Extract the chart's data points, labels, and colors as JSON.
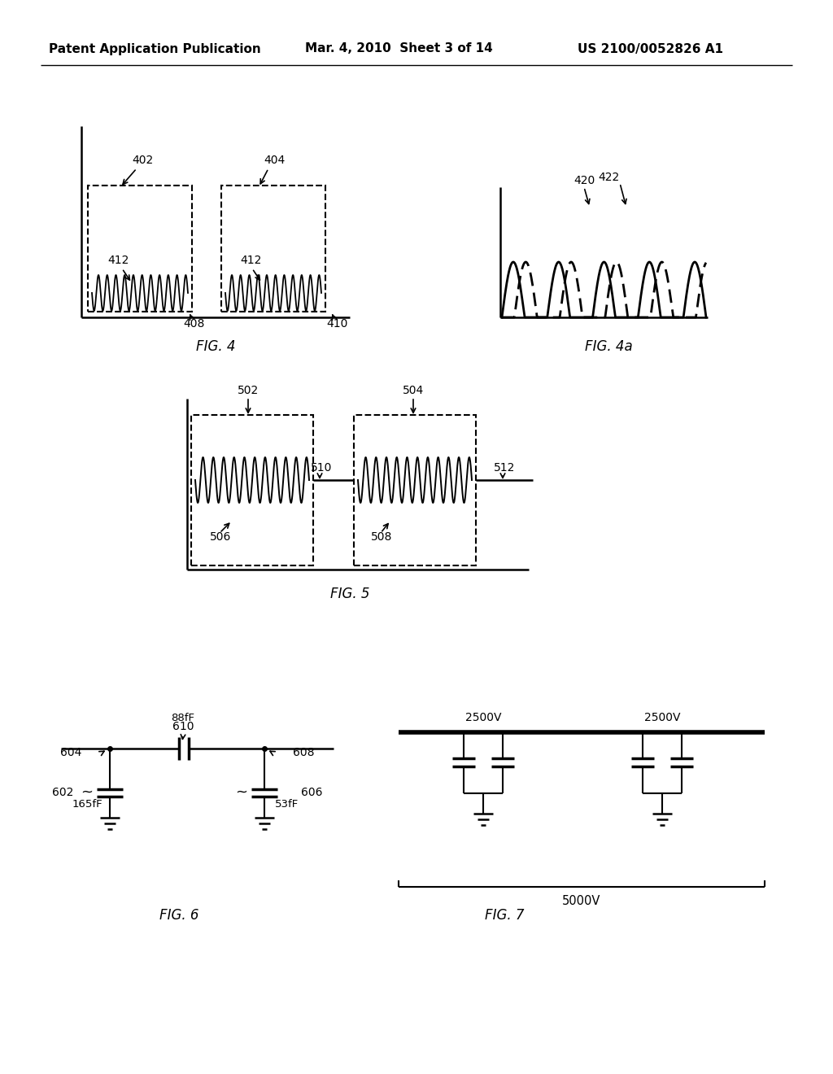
{
  "header_left": "Patent Application Publication",
  "header_mid": "Mar. 4, 2010  Sheet 3 of 14",
  "header_right": "US 2100/0052826 A1",
  "bg_color": "#ffffff",
  "line_color": "#000000",
  "fig4_caption": "FIG. 4",
  "fig4a_caption": "FIG. 4a",
  "fig5_caption": "FIG. 5",
  "fig6_caption": "FIG. 6",
  "fig7_caption": "FIG. 7"
}
